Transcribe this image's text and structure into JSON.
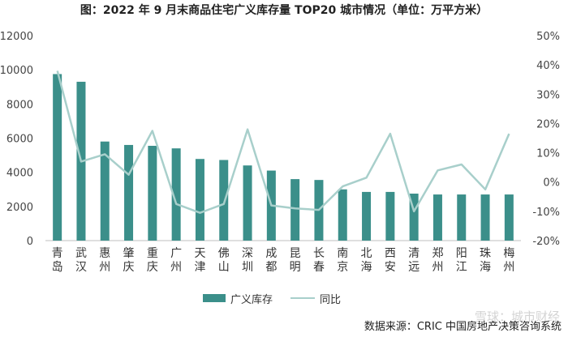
{
  "header": {
    "title": "图：2022 年 9 月末商品住宅广义库存量 TOP20 城市情况（单位：万平方米）"
  },
  "footer": {
    "source": "数据来源：CRIC 中国房地产决策咨询系统",
    "watermark": "雪球：城市财经"
  },
  "colors": {
    "bar": "#3b8f8a",
    "line": "#a8cfcb"
  },
  "chart_data": {
    "type": "bar",
    "categories": [
      "青岛",
      "武汉",
      "惠州",
      "肇庆",
      "重庆",
      "广州",
      "天津",
      "佛山",
      "深圳",
      "成都",
      "昆明",
      "长春",
      "南京",
      "北海",
      "西安",
      "清远",
      "郑州",
      "阳江",
      "珠海",
      "梅州"
    ],
    "series": [
      {
        "name": "广义库存",
        "type": "bar",
        "axis": "left",
        "values": [
          9750,
          9300,
          5800,
          5600,
          5550,
          5400,
          4780,
          4720,
          4400,
          4100,
          3600,
          3550,
          3000,
          2850,
          2850,
          2750,
          2700,
          2700,
          2700,
          2700
        ]
      },
      {
        "name": "同比",
        "type": "line",
        "axis": "right",
        "unit": "%",
        "values": [
          38,
          7,
          9.5,
          2.5,
          17.5,
          -7.5,
          -10.5,
          -7.5,
          18,
          -8,
          -9,
          -9.5,
          -1.5,
          1.5,
          16.5,
          -10,
          4,
          6,
          -2.5,
          16.5
        ]
      }
    ],
    "y_left": {
      "min": 0,
      "max": 12000,
      "ticks": [
        "0",
        "2000",
        "4000",
        "6000",
        "8000",
        "10000",
        "12000"
      ]
    },
    "y_right": {
      "min": -20,
      "max": 50,
      "ticks": [
        "-20%",
        "-10%",
        "0%",
        "10%",
        "20%",
        "30%",
        "40%",
        "50%"
      ]
    },
    "grid": false,
    "legend_position": "bottom"
  }
}
